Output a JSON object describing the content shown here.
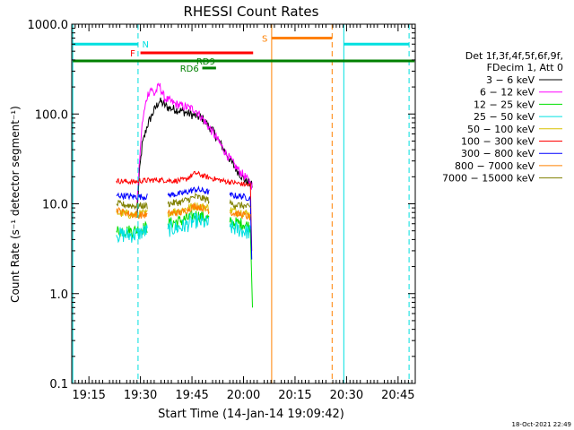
{
  "chart_data": {
    "type": "line",
    "title": "RHESSI Count Rates",
    "xlabel": "Start Time (14-Jan-14 19:09:42)",
    "ylabel": "Count Rate (s⁻¹ detector segment⁻¹)",
    "timestamp": "18-Oct-2021 22:49",
    "yscale": "log",
    "ylim": [
      0.1,
      1000
    ],
    "xlim": [
      1150,
      1250
    ],
    "x_ticks": [
      {
        "v": 1155,
        "label": "19:15"
      },
      {
        "v": 1170,
        "label": "19:30"
      },
      {
        "v": 1185,
        "label": "19:45"
      },
      {
        "v": 1200,
        "label": "20:00"
      },
      {
        "v": 1215,
        "label": "20:15"
      },
      {
        "v": 1230,
        "label": "20:30"
      },
      {
        "v": 1245,
        "label": "20:45"
      }
    ],
    "y_ticks": [
      {
        "v": 0.1,
        "label": "0.1"
      },
      {
        "v": 1,
        "label": "1.0"
      },
      {
        "v": 10,
        "label": "10.0"
      },
      {
        "v": 100,
        "label": "100.0"
      },
      {
        "v": 1000,
        "label": "1000.0"
      }
    ],
    "legend": {
      "placement": "right",
      "header": [
        "Det 1f,3f,4f,5f,6f,9f,",
        "FDecim 1, Att 0"
      ],
      "entries": [
        {
          "label": "3 − 6 keV",
          "color": "#000000"
        },
        {
          "label": "6 − 12 keV",
          "color": "#ff00ff"
        },
        {
          "label": "12 − 25 keV",
          "color": "#00e000"
        },
        {
          "label": "25 − 50 keV",
          "color": "#00e0e0"
        },
        {
          "label": "50 − 100 keV",
          "color": "#d8c000"
        },
        {
          "label": "100 − 300 keV",
          "color": "#ff0000"
        },
        {
          "label": "300 − 800 keV",
          "color": "#0000ff"
        },
        {
          "label": "800 − 7000 keV",
          "color": "#ff8000"
        },
        {
          "label": "7000 − 15000 keV",
          "color": "#808000"
        }
      ]
    },
    "series": [
      {
        "name": "3 - 6 keV",
        "color": "#000000",
        "noise": 0.05,
        "points": [
          [
            1150.2,
            7.5
          ],
          [
            1157,
            7
          ],
          [
            1163,
            6.5
          ],
          [
            1169,
            7
          ],
          [
            1169.6,
            20
          ],
          [
            1170.5,
            45
          ],
          [
            1172,
            75
          ],
          [
            1174,
            110
          ],
          [
            1175.5,
            140
          ],
          [
            1178,
            118
          ],
          [
            1182,
            108
          ],
          [
            1185,
            98
          ],
          [
            1188,
            90
          ],
          [
            1191,
            65
          ],
          [
            1194,
            42
          ],
          [
            1197,
            27
          ],
          [
            1200,
            19
          ],
          [
            1202.5,
            16
          ]
        ]
      },
      {
        "name": "6 - 12 keV",
        "color": "#ff00ff",
        "noise": 0.05,
        "points": [
          [
            1150.2,
            10
          ],
          [
            1160,
            9.5
          ],
          [
            1169,
            10
          ],
          [
            1169.6,
            25
          ],
          [
            1170.5,
            80
          ],
          [
            1172,
            160
          ],
          [
            1173,
            195
          ],
          [
            1174,
            165
          ],
          [
            1175.5,
            210
          ],
          [
            1177,
            150
          ],
          [
            1180,
            130
          ],
          [
            1183,
            120
          ],
          [
            1186,
            112
          ],
          [
            1189,
            80
          ],
          [
            1192,
            55
          ],
          [
            1195,
            36
          ],
          [
            1198,
            25
          ],
          [
            1201,
            19
          ],
          [
            1202.5,
            16
          ]
        ]
      },
      {
        "name": "12 - 25 keV",
        "color": "#00e000",
        "noise": 0.07,
        "points": [
          [
            1150.2,
            7
          ],
          [
            1157,
            6
          ],
          [
            1163,
            5
          ],
          [
            1168,
            5
          ],
          [
            1172,
            5.5
          ],
          [
            1178,
            6
          ],
          [
            1182,
            6.5
          ],
          [
            1186,
            7.5
          ],
          [
            1190,
            6.8
          ],
          [
            1196,
            6.2
          ],
          [
            1200,
            6
          ],
          [
            1202,
            5.5
          ],
          [
            1202.6,
            0.7
          ],
          [
            1227,
            6.5
          ],
          [
            1236,
            6.2
          ],
          [
            1243,
            7
          ],
          [
            1249.8,
            7.5
          ]
        ]
      },
      {
        "name": "25 - 50 keV",
        "color": "#00e0e0",
        "noise": 0.09,
        "points": [
          [
            1150.2,
            6
          ],
          [
            1157,
            5
          ],
          [
            1163,
            4.5
          ],
          [
            1168,
            4.5
          ],
          [
            1172,
            5
          ],
          [
            1178,
            5.2
          ],
          [
            1182,
            5.5
          ],
          [
            1186,
            6.5
          ],
          [
            1190,
            6
          ],
          [
            1196,
            5.5
          ],
          [
            1200,
            5
          ],
          [
            1202,
            4.8
          ],
          [
            1227,
            5.5
          ],
          [
            1236,
            5.2
          ],
          [
            1243,
            6
          ],
          [
            1249.8,
            6.5
          ]
        ]
      },
      {
        "name": "50 - 100 keV",
        "color": "#d8c000",
        "noise": 0.05,
        "points": [
          [
            1150.2,
            9
          ],
          [
            1157,
            8.5
          ],
          [
            1163,
            8
          ],
          [
            1168,
            7.5
          ],
          [
            1172,
            7.8
          ],
          [
            1178,
            8
          ],
          [
            1182,
            8.5
          ],
          [
            1186,
            9.5
          ],
          [
            1190,
            9
          ],
          [
            1196,
            8.5
          ],
          [
            1200,
            8
          ],
          [
            1202,
            7.5
          ],
          [
            1227,
            9
          ],
          [
            1236,
            8.7
          ],
          [
            1243,
            9.2
          ],
          [
            1249.8,
            10
          ]
        ]
      },
      {
        "name": "100 - 300 keV",
        "color": "#ff0000",
        "noise": 0.03,
        "points": [
          [
            1150.2,
            22
          ],
          [
            1157,
            19
          ],
          [
            1163,
            18
          ],
          [
            1168,
            17.5
          ],
          [
            1170,
            18
          ],
          [
            1175,
            18.5
          ],
          [
            1180,
            18
          ],
          [
            1183,
            18.5
          ],
          [
            1186,
            22
          ],
          [
            1189,
            20
          ],
          [
            1194,
            18
          ],
          [
            1198,
            17
          ],
          [
            1202,
            16
          ],
          [
            1202.4,
            3
          ],
          [
            1227,
            20
          ],
          [
            1236,
            18
          ],
          [
            1243,
            19
          ],
          [
            1249.8,
            21
          ]
        ]
      },
      {
        "name": "300 - 800 keV",
        "color": "#0000ff",
        "noise": 0.035,
        "points": [
          [
            1150.2,
            15
          ],
          [
            1157,
            13.5
          ],
          [
            1163,
            12.5
          ],
          [
            1168,
            12
          ],
          [
            1172,
            12
          ],
          [
            1178,
            12.5
          ],
          [
            1182,
            13
          ],
          [
            1186,
            14.5
          ],
          [
            1190,
            13.5
          ],
          [
            1196,
            12.5
          ],
          [
            1200,
            12
          ],
          [
            1202,
            11.5
          ],
          [
            1202.4,
            2.4
          ],
          [
            1227,
            14
          ],
          [
            1236,
            13
          ],
          [
            1243,
            13.5
          ],
          [
            1249.8,
            15
          ]
        ]
      },
      {
        "name": "800 - 7000 keV",
        "color": "#ff8000",
        "noise": 0.04,
        "points": [
          [
            1150.2,
            11
          ],
          [
            1157,
            9.5
          ],
          [
            1163,
            8.5
          ],
          [
            1168,
            7.5
          ],
          [
            1172,
            7.5
          ],
          [
            1178,
            7.8
          ],
          [
            1182,
            8
          ],
          [
            1186,
            9.5
          ],
          [
            1190,
            8.5
          ],
          [
            1196,
            8
          ],
          [
            1200,
            7.5
          ],
          [
            1202,
            7
          ],
          [
            1227,
            10
          ],
          [
            1236,
            8.5
          ],
          [
            1243,
            9
          ],
          [
            1249.8,
            10.5
          ]
        ]
      },
      {
        "name": "7000 - 15000 keV",
        "color": "#808000",
        "noise": 0.04,
        "points": [
          [
            1150.2,
            12
          ],
          [
            1157,
            10.5
          ],
          [
            1163,
            10
          ],
          [
            1168,
            9.5
          ],
          [
            1172,
            9.5
          ],
          [
            1178,
            10
          ],
          [
            1182,
            10.5
          ],
          [
            1186,
            12
          ],
          [
            1190,
            11
          ],
          [
            1196,
            10
          ],
          [
            1200,
            9.5
          ],
          [
            1202,
            9
          ],
          [
            1227,
            11.5
          ],
          [
            1236,
            10.5
          ],
          [
            1243,
            10.5
          ],
          [
            1249.8,
            11.5
          ]
        ]
      }
    ],
    "vlines": [
      {
        "x": 1150.3,
        "color": "#00e0e0",
        "style": "solid"
      },
      {
        "x": 1169.3,
        "color": "#00e0e0",
        "style": "dashed"
      },
      {
        "x": 1229.2,
        "color": "#00e0e0",
        "style": "solid"
      },
      {
        "x": 1248.2,
        "color": "#00e0e0",
        "style": "dashed"
      },
      {
        "x": 1208.2,
        "color": "#ff8000",
        "style": "solid"
      },
      {
        "x": 1225.8,
        "color": "#ff8000",
        "style": "dashed"
      }
    ],
    "flags": [
      {
        "label": "N",
        "color": "#00e0e0",
        "y": 600,
        "segments": [
          [
            1150.3,
            1169.3
          ],
          [
            1229.2,
            1248.2
          ]
        ],
        "label_x": 1170.5,
        "label_anchor": "start"
      },
      {
        "label": "S",
        "color": "#ff8000",
        "y": 700,
        "segments": [
          [
            1208.2,
            1225.8
          ]
        ],
        "label_x": 1207,
        "label_anchor": "end"
      },
      {
        "label": "F",
        "color": "#ff0000",
        "y": 480,
        "segments": [
          [
            1170,
            1202.8
          ]
        ],
        "label_x": 1168.5,
        "label_anchor": "end"
      },
      {
        "label": "RD9",
        "color": "#008000",
        "y": 390,
        "segments": [
          [
            1150.3,
            1249.8
          ]
        ],
        "label_x": 1189,
        "label_anchor": "middle"
      },
      {
        "label": "RD6",
        "color": "#008000",
        "y": 325,
        "segments": [
          [
            1188,
            1192
          ]
        ],
        "label_x": 1187,
        "label_anchor": "end"
      }
    ]
  }
}
